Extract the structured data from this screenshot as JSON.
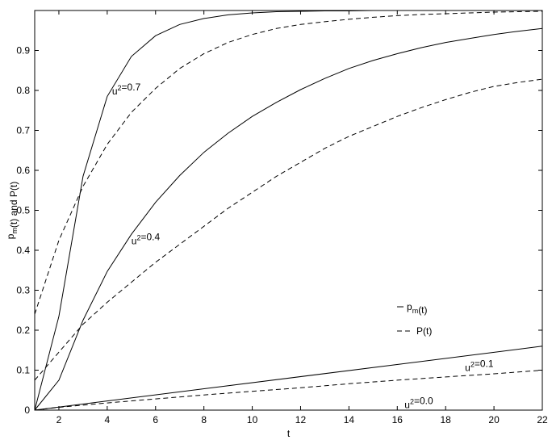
{
  "chart_data": {
    "type": "line",
    "title": "",
    "xlabel": "t",
    "ylabel": "p_m(t) and P(t)",
    "xlim": [
      1,
      22
    ],
    "ylim": [
      0,
      1.0
    ],
    "xticks": [
      2,
      4,
      6,
      8,
      10,
      12,
      14,
      16,
      18,
      20,
      22
    ],
    "yticks": [
      0,
      0.1,
      0.2,
      0.3,
      0.4,
      0.5,
      0.6,
      0.7,
      0.8,
      0.9
    ],
    "grid": false,
    "legend": {
      "placement": "lower-right",
      "entries": [
        {
          "label": "p_m(t)",
          "style": "solid"
        },
        {
          "label": "P(t)",
          "style": "dashed"
        }
      ]
    },
    "annotations": [
      {
        "text": "u^2=0.7",
        "x": 4.2,
        "y": 0.79
      },
      {
        "text": "u^2=0.4",
        "x": 5.0,
        "y": 0.415
      },
      {
        "text": "u^2=0.1",
        "x": 18.8,
        "y": 0.098
      },
      {
        "text": "u^2=0.0",
        "x": 16.3,
        "y": 0.005
      }
    ],
    "series": [
      {
        "style": "solid",
        "x": [
          1,
          2,
          3,
          4,
          5,
          6,
          7,
          8,
          9,
          10,
          11,
          12,
          13,
          14,
          15,
          16,
          17,
          18,
          19,
          20,
          21,
          22
        ],
        "y": [
          0,
          0.235,
          0.585,
          0.785,
          0.885,
          0.937,
          0.965,
          0.98,
          0.989,
          0.994,
          0.997,
          0.998,
          0.999,
          0.999,
          1.0,
          1.0,
          1.0,
          1.0,
          1.0,
          1.0,
          1.0,
          1.0
        ]
      },
      {
        "style": "dashed",
        "x": [
          1,
          2,
          3,
          4,
          5,
          6,
          7,
          8,
          9,
          10,
          11,
          12,
          13,
          14,
          15,
          16,
          17,
          18,
          19,
          20,
          21,
          22
        ],
        "y": [
          0.24,
          0.425,
          0.56,
          0.665,
          0.745,
          0.805,
          0.855,
          0.892,
          0.92,
          0.94,
          0.955,
          0.965,
          0.972,
          0.978,
          0.983,
          0.987,
          0.99,
          0.992,
          0.994,
          0.996,
          0.997,
          0.998
        ]
      },
      {
        "style": "solid",
        "x": [
          1,
          2,
          3,
          4,
          5,
          6,
          7,
          8,
          9,
          10,
          11,
          12,
          13,
          14,
          15,
          16,
          17,
          18,
          19,
          20,
          21,
          22
        ],
        "y": [
          0,
          0.075,
          0.225,
          0.347,
          0.44,
          0.52,
          0.587,
          0.645,
          0.693,
          0.735,
          0.77,
          0.802,
          0.83,
          0.855,
          0.875,
          0.892,
          0.907,
          0.92,
          0.93,
          0.94,
          0.948,
          0.955
        ]
      },
      {
        "style": "dashed",
        "x": [
          1,
          2,
          3,
          4,
          5,
          6,
          7,
          8,
          9,
          10,
          11,
          12,
          13,
          14,
          15,
          16,
          17,
          18,
          19,
          20,
          21,
          22
        ],
        "y": [
          0.075,
          0.145,
          0.215,
          0.27,
          0.32,
          0.37,
          0.415,
          0.46,
          0.505,
          0.545,
          0.585,
          0.62,
          0.655,
          0.685,
          0.71,
          0.735,
          0.757,
          0.777,
          0.795,
          0.81,
          0.82,
          0.828
        ]
      },
      {
        "style": "solid",
        "x": [
          1,
          22
        ],
        "y": [
          0,
          0.16
        ]
      },
      {
        "style": "dashed",
        "x": [
          1,
          2,
          4,
          6,
          8,
          10,
          12,
          14,
          16,
          18,
          20,
          22
        ],
        "y": [
          0,
          0.007,
          0.018,
          0.028,
          0.038,
          0.047,
          0.056,
          0.066,
          0.075,
          0.083,
          0.091,
          0.1
        ]
      },
      {
        "style": "solid",
        "x": [
          1,
          22
        ],
        "y": [
          0,
          0
        ]
      }
    ]
  }
}
